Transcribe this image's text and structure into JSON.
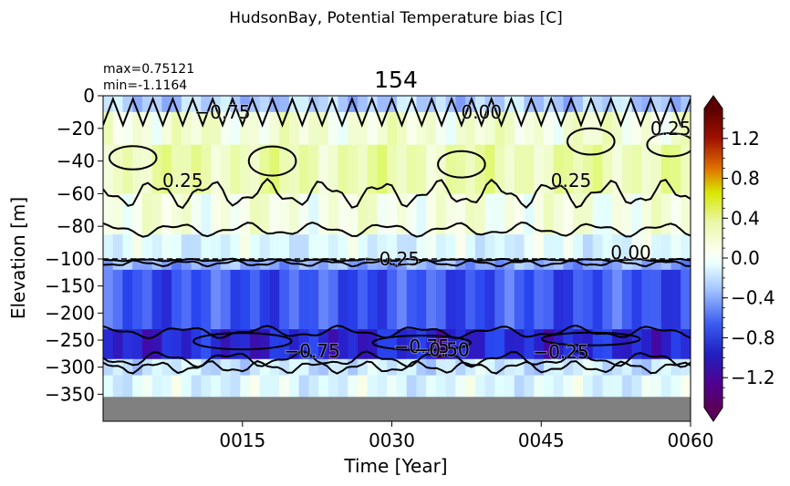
{
  "figure": {
    "suptitle": "HudsonBay, Potential Temperature bias [C]",
    "panel_title": "154",
    "stats": {
      "max": "max=0.75121",
      "min": "min=-1.1164"
    }
  },
  "chart_data": {
    "type": "heatmap",
    "title": "154",
    "xlabel": "Time [Year]",
    "ylabel": "Elevation [m]",
    "x_ticks": [
      "0015",
      "0030",
      "0045",
      "0060"
    ],
    "xlim": [
      1,
      60
    ],
    "y_ticks_upper": [
      0,
      -20,
      -40,
      -60,
      -80,
      -100
    ],
    "y_ticks_lower": [
      -150,
      -200,
      -250,
      -300,
      -350
    ],
    "ylim_upper": [
      -100,
      0
    ],
    "ylim_lower": [
      -400,
      -100
    ],
    "scale_break": -100,
    "no_data_below": -355,
    "colorbar": {
      "vmin": -1.5,
      "vmax": 1.5,
      "extend": "both",
      "ticks": [
        1.2,
        0.8,
        0.4,
        0.0,
        -0.4,
        -0.8,
        -1.2
      ],
      "tick_labels": [
        "1.2",
        "0.8",
        "0.4",
        "0.0",
        "−0.4",
        "−0.8",
        "−1.2"
      ]
    },
    "contour_labels": [
      {
        "text": "−0.75",
        "x": 13,
        "y": -10
      },
      {
        "text": "0.00",
        "x": 39,
        "y": -10
      },
      {
        "text": "0.25",
        "x": 58,
        "y": -20
      },
      {
        "text": "0.25",
        "x": 9,
        "y": -52
      },
      {
        "text": "0.25",
        "x": 48,
        "y": -52
      },
      {
        "text": "0.00",
        "x": 54,
        "y": -96
      },
      {
        "text": "−0.25",
        "x": 30,
        "y": -100
      },
      {
        "text": "−0.75",
        "x": 22,
        "y": -270
      },
      {
        "text": "−0.75",
        "x": 33,
        "y": -262
      },
      {
        "text": "−0.50",
        "x": 35,
        "y": -268
      },
      {
        "text": "−0.25",
        "x": 47,
        "y": -272
      }
    ],
    "depth_bands": [
      {
        "top": 0,
        "bottom": -10,
        "value": -0.3
      },
      {
        "top": -10,
        "bottom": -30,
        "value": 0.15
      },
      {
        "top": -30,
        "bottom": -60,
        "value": 0.3
      },
      {
        "top": -60,
        "bottom": -85,
        "value": 0.1
      },
      {
        "top": -85,
        "bottom": -100,
        "value": -0.1
      },
      {
        "top": -100,
        "bottom": -120,
        "value": -0.45
      },
      {
        "top": -120,
        "bottom": -230,
        "value": -0.75
      },
      {
        "top": -230,
        "bottom": -285,
        "value": -0.95
      },
      {
        "top": -285,
        "bottom": -315,
        "value": -0.2
      },
      {
        "top": -315,
        "bottom": -355,
        "value": -0.1
      }
    ]
  }
}
